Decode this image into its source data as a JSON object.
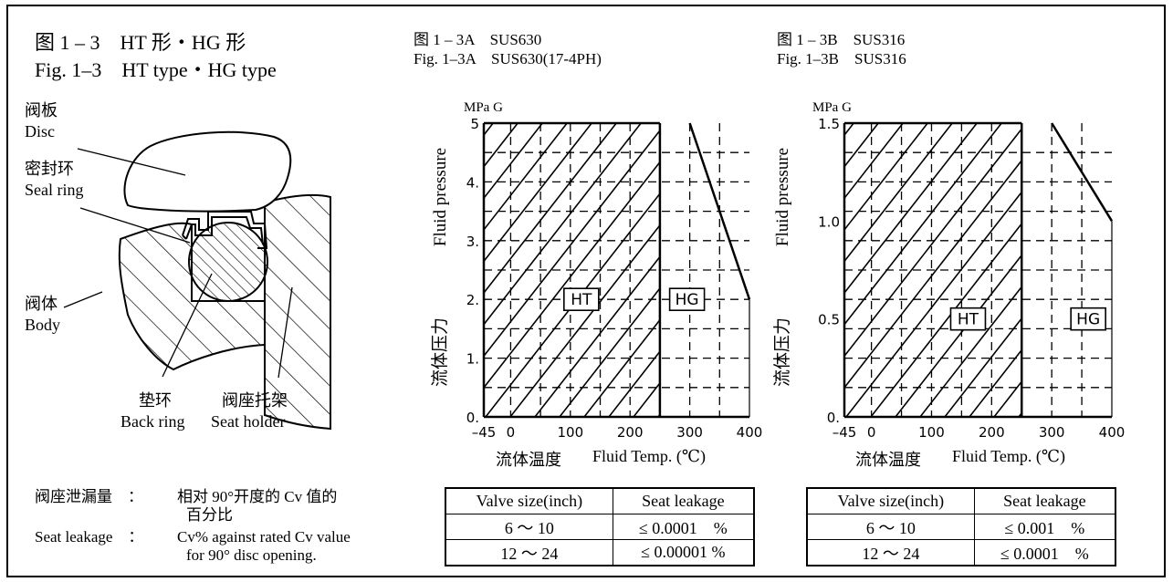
{
  "fig_left": {
    "title_cn": "图 1 – 3　HT 形・HG 形",
    "title_en": "Fig. 1–3　HT type・HG type",
    "parts": {
      "disc_cn": "阀板",
      "disc_en": "Disc",
      "seal_cn": "密封环",
      "seal_en": "Seal ring",
      "body_cn": "阀体",
      "body_en": "Body",
      "back_cn": "垫环",
      "back_en": "Back ring",
      "holder_cn": "阀座托架",
      "holder_en": "Seat holder"
    },
    "note": {
      "cn_label": "阀座泄漏量　：",
      "cn_text_1": "相对 90°开度的 Cv 值的",
      "cn_text_2": "百分比",
      "en_label": "Seat leakage　：",
      "en_text_1": "Cv% against rated Cv value",
      "en_text_2": "for 90° disc opening."
    }
  },
  "chart_data": [
    {
      "type": "area",
      "title_cn": "图 1 – 3A　SUS630",
      "title_en": "Fig. 1–3A　SUS630(17-4PH)",
      "unit": "MPa G",
      "ylabel_en": "Fluid pressure",
      "ylabel_cn": "流体压力",
      "xlabel_cn": "流体温度",
      "xlabel_en": "Fluid Temp. (℃)",
      "xlim": [
        -45,
        400
      ],
      "ylim": [
        0,
        5
      ],
      "xticks": [
        "–45",
        "0",
        "100",
        "200",
        "300",
        "400"
      ],
      "yticks": [
        "0.",
        "1.",
        "2.",
        "3.",
        "4.",
        "5"
      ],
      "regions": [
        {
          "name": "HT",
          "x_range": [
            -45,
            250
          ],
          "y_range": [
            0,
            5
          ]
        },
        {
          "name": "HG",
          "x_range": [
            250,
            400
          ],
          "boundary": [
            [
              300,
              5
            ],
            [
              400,
              2
            ]
          ]
        }
      ],
      "grid": true,
      "table": {
        "headers": [
          "Valve size(inch)",
          "Seat leakage"
        ],
        "rows": [
          [
            "6 ～ 10",
            "≤ 0.0001　%"
          ],
          [
            "12 ～ 24",
            "≤ 0.00001 %"
          ]
        ]
      }
    },
    {
      "type": "area",
      "title_cn": "图 1 – 3B　SUS316",
      "title_en": "Fig. 1–3B　SUS316",
      "unit": "MPa G",
      "ylabel_en": "Fluid pressure",
      "ylabel_cn": "流体压力",
      "xlabel_cn": "流体温度",
      "xlabel_en": "Fluid Temp. (℃)",
      "xlim": [
        -45,
        400
      ],
      "ylim": [
        0,
        1.5
      ],
      "xticks": [
        "–45",
        "0",
        "100",
        "200",
        "300",
        "400"
      ],
      "yticks": [
        "0.",
        "0.5",
        "1.0",
        "1.5"
      ],
      "regions": [
        {
          "name": "HT",
          "x_range": [
            -45,
            250
          ],
          "y_range": [
            0,
            1.5
          ]
        },
        {
          "name": "HG",
          "x_range": [
            250,
            400
          ],
          "boundary": [
            [
              300,
              1.5
            ],
            [
              400,
              1.0
            ]
          ]
        }
      ],
      "grid": true,
      "table": {
        "headers": [
          "Valve size(inch)",
          "Seat leakage"
        ],
        "rows": [
          [
            "6 ～ 10",
            "≤ 0.001　%"
          ],
          [
            "12 ～ 24",
            "≤ 0.0001　%"
          ]
        ]
      }
    }
  ]
}
